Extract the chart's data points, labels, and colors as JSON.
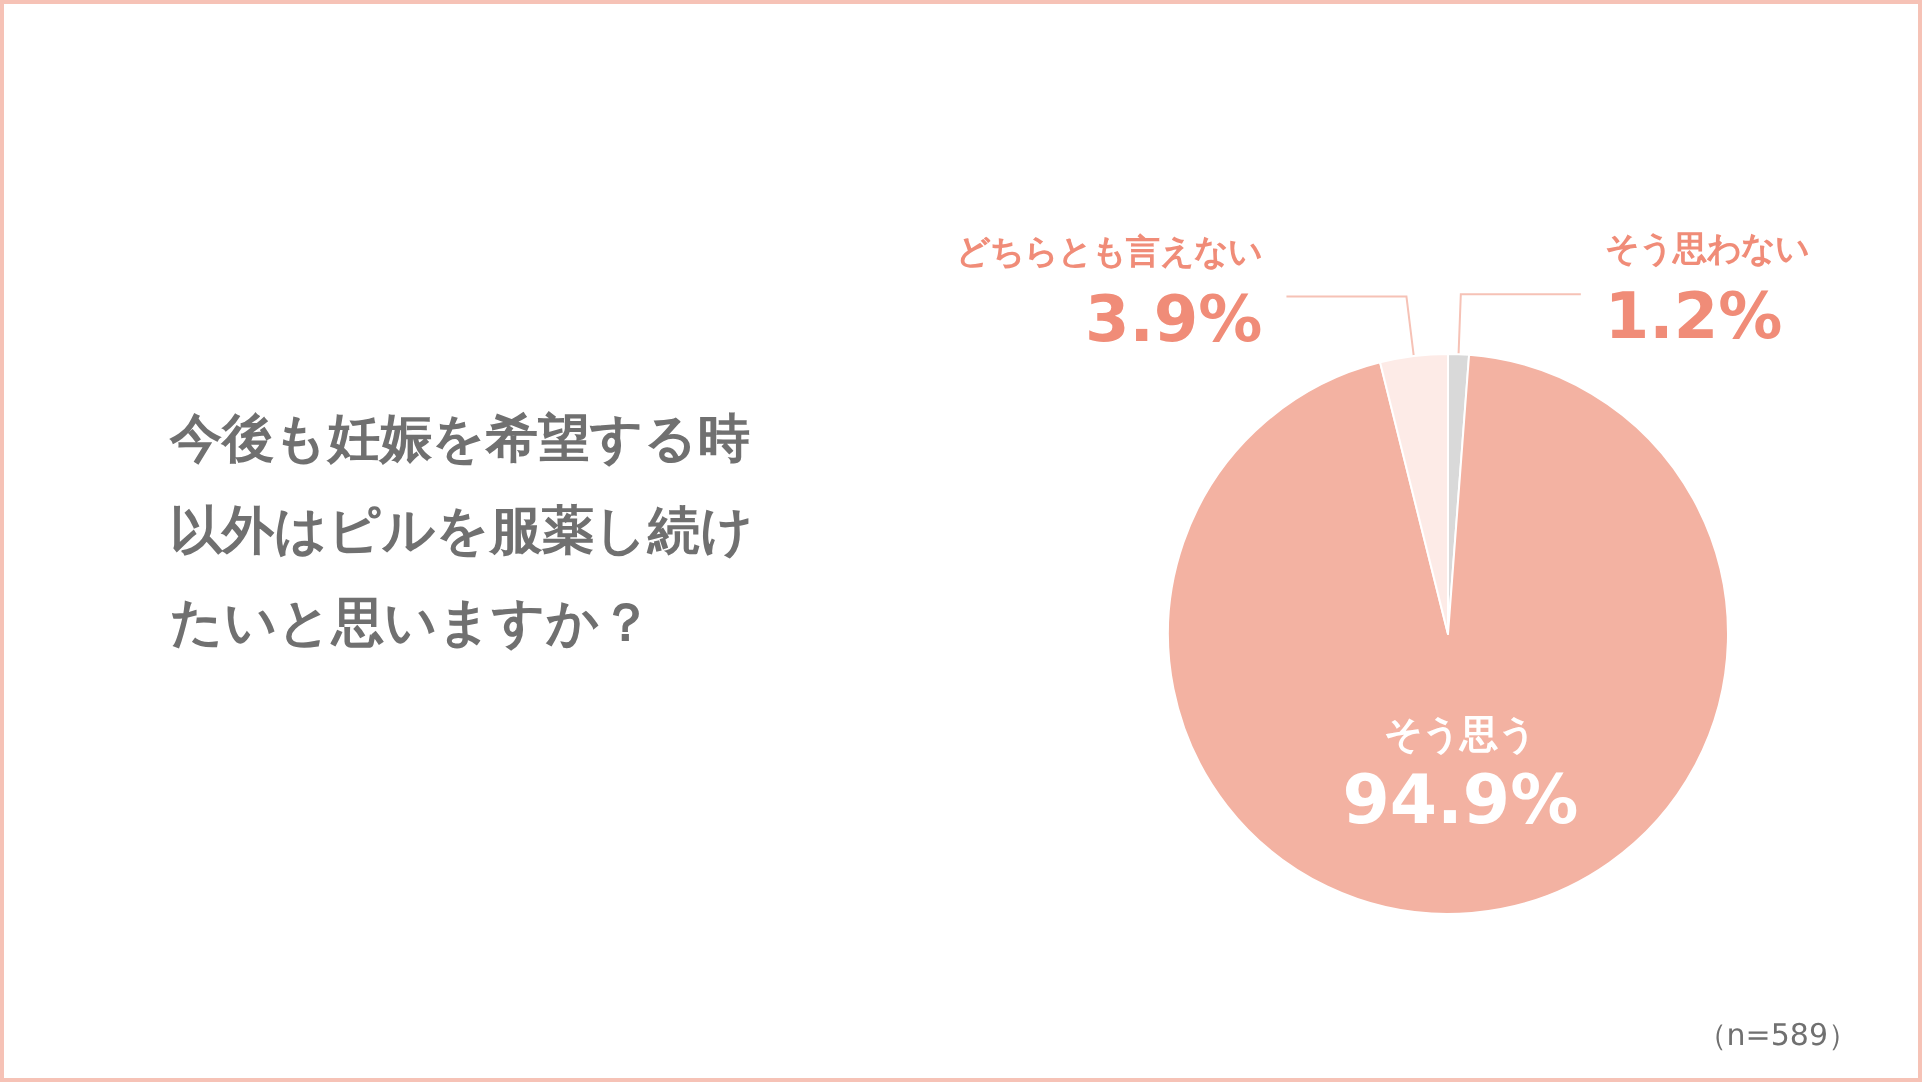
{
  "chart_data": {
    "type": "pie",
    "title": "今後も妊娠を希望する時以外はピルを服薬し続けたいと思いますか？",
    "categories": [
      "そう思わない",
      "そう思う",
      "どちらとも言えない"
    ],
    "values": [
      1.2,
      94.9,
      3.9
    ],
    "colors": [
      "#d9d9d9",
      "#f3b2a2",
      "#fdebe7"
    ],
    "value_labels": [
      "1.2%",
      "94.9%",
      "3.9%"
    ],
    "legend": false,
    "annotations": [
      "（n=589）"
    ]
  }
}
